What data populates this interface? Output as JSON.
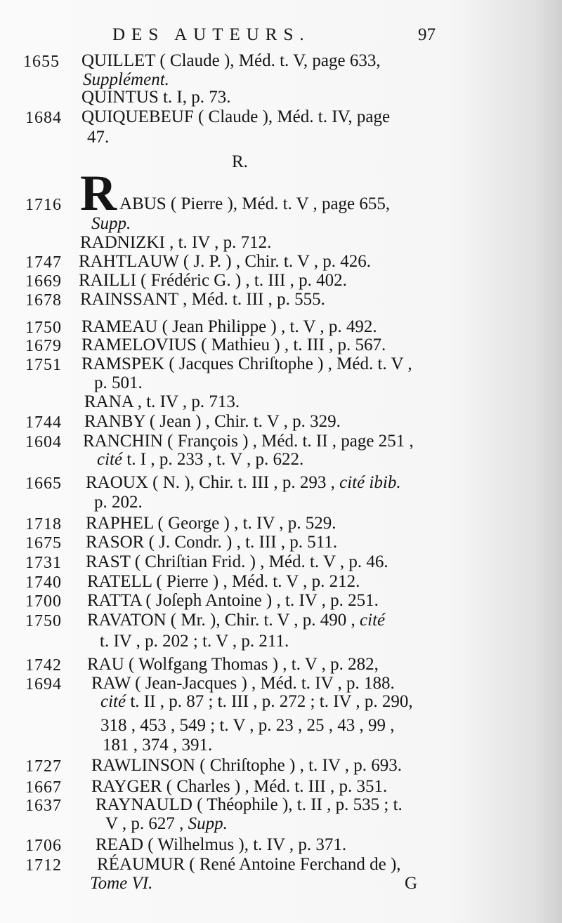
{
  "header": {
    "title": "DES AUTEURS.",
    "page_number": "97"
  },
  "section_letter": "R.",
  "drop_cap": "R",
  "lines": [
    {
      "year": "1655",
      "parts": [
        {
          "text": "QUILLET ( Claude ), Méd. t. V, page 633,"
        }
      ]
    },
    {
      "year": "",
      "parts": [
        {
          "text": "Supplément.",
          "italic": true
        }
      ]
    },
    {
      "year": "",
      "parts": [
        {
          "text": "QUINTUS t. I, p. 73."
        }
      ]
    },
    {
      "year": "1684",
      "parts": [
        {
          "text": "QUIQUEBEUF ( Claude ), Méd. t. IV, page"
        }
      ]
    },
    {
      "year": "",
      "parts": [
        {
          "text": "47."
        }
      ]
    },
    {
      "year": "1716",
      "parts": [
        {
          "text": "ABUS ( Pierre ),  Méd. t. V , page 655,"
        }
      ]
    },
    {
      "year": "",
      "parts": [
        {
          "text": "Supp.",
          "italic": true
        }
      ]
    },
    {
      "year": "",
      "parts": [
        {
          "text": "RADNIZKI , t. IV , p. 712."
        }
      ]
    },
    {
      "year": "1747",
      "parts": [
        {
          "text": "RAHTLAUW ( J. P. ) , Chir. t. V , p. 426."
        }
      ]
    },
    {
      "year": "1669",
      "parts": [
        {
          "text": "RAILLI ( Frédéric G. ) , t. III , p. 402."
        }
      ]
    },
    {
      "year": "1678",
      "parts": [
        {
          "text": "RAINSSANT , Méd. t. III , p. 555."
        }
      ]
    },
    {
      "year": "1750",
      "parts": [
        {
          "text": "RAMEAU ( Jean Philippe ) , t. V , p. 492."
        }
      ]
    },
    {
      "year": "1679",
      "parts": [
        {
          "text": "RAMELOVIUS ( Mathieu ) , t. III , p. 567."
        }
      ]
    },
    {
      "year": "1751",
      "parts": [
        {
          "text": "RAMSPEK ( Jacques Chriſtophe ) , Méd. t. V ,"
        }
      ]
    },
    {
      "year": "",
      "parts": [
        {
          "text": "p. 501."
        }
      ]
    },
    {
      "year": "",
      "parts": [
        {
          "text": "RANA , t. IV , p. 713."
        }
      ]
    },
    {
      "year": "1744",
      "parts": [
        {
          "text": "RANBY ( Jean ) , Chir. t. V , p. 329."
        }
      ]
    },
    {
      "year": "1604",
      "parts": [
        {
          "text": "RANCHIN ( François ) , Méd. t. II , page 251 ,"
        }
      ]
    },
    {
      "year": "",
      "parts": [
        {
          "text": "cité",
          "italic": true
        },
        {
          "text": " t. I , p. 233 , t. V , p. 622."
        }
      ]
    },
    {
      "year": "1665",
      "parts": [
        {
          "text": "RAOUX ( N. ),  Chir. t. III , p. 293 , "
        },
        {
          "text": "cité ibib.",
          "italic": true
        }
      ]
    },
    {
      "year": "",
      "parts": [
        {
          "text": "p. 202."
        }
      ]
    },
    {
      "year": "1718",
      "parts": [
        {
          "text": "RAPHEL ( George ) , t. IV , p. 529."
        }
      ]
    },
    {
      "year": "1675",
      "parts": [
        {
          "text": "RASOR ( J. Condr. ) , t. III , p. 511."
        }
      ]
    },
    {
      "year": "1731",
      "parts": [
        {
          "text": "RAST ( Chriſtian Frid. ) , Méd. t. V , p. 46."
        }
      ]
    },
    {
      "year": "1740",
      "parts": [
        {
          "text": "RATELL ( Pierre ) , Méd. t. V , p. 212."
        }
      ]
    },
    {
      "year": "1700",
      "parts": [
        {
          "text": "RATTA ( Joſeph Antoine ) , t. IV , p. 251."
        }
      ]
    },
    {
      "year": "1750",
      "parts": [
        {
          "text": "RAVATON ( Mr. ),  Chir. t. V , p. 490 , "
        },
        {
          "text": "cité",
          "italic": true
        }
      ]
    },
    {
      "year": "",
      "parts": [
        {
          "text": "t. IV , p. 202 ; t. V , p. 211."
        }
      ]
    },
    {
      "year": "1742",
      "parts": [
        {
          "text": "RAU ( Wolfgang Thomas ) , t. V , p. 282,"
        }
      ]
    },
    {
      "year": "1694",
      "parts": [
        {
          "text": "RAW ( Jean-Jacques ) , Méd. t. IV , p. 188."
        }
      ]
    },
    {
      "year": "",
      "parts": [
        {
          "text": "cité",
          "italic": true
        },
        {
          "text": " t. II , p. 87 ; t. III , p. 272 ; t. IV , p. 290,"
        }
      ]
    },
    {
      "year": "",
      "parts": [
        {
          "text": "318 , 453 , 549 ; t. V , p. 23 , 25 , 43 , 99 ,"
        }
      ]
    },
    {
      "year": "",
      "parts": [
        {
          "text": "181 , 374 , 391."
        }
      ]
    },
    {
      "year": "1727",
      "parts": [
        {
          "text": "RAWLINSON ( Chriſtophe ) , t. IV , p. 693."
        }
      ]
    },
    {
      "year": "1667",
      "parts": [
        {
          "text": "RAYGER ( Charles ) , Méd. t. III , p. 351."
        }
      ]
    },
    {
      "year": "1637",
      "parts": [
        {
          "text": "RAYNAULD ( Théophile ), t. II , p. 535 ; t."
        }
      ]
    },
    {
      "year": "",
      "parts": [
        {
          "text": "V , p. 627 , "
        },
        {
          "text": "Supp.",
          "italic": true
        }
      ]
    },
    {
      "year": "1706",
      "parts": [
        {
          "text": "READ ( Wilhelmus ), t. IV , p. 371."
        }
      ]
    },
    {
      "year": "1712",
      "parts": [
        {
          "text": "RÉAUMUR ( René Antoine Ferchand de ),"
        }
      ]
    }
  ],
  "footer": {
    "volume": "Tome VI.",
    "signature": "G"
  }
}
